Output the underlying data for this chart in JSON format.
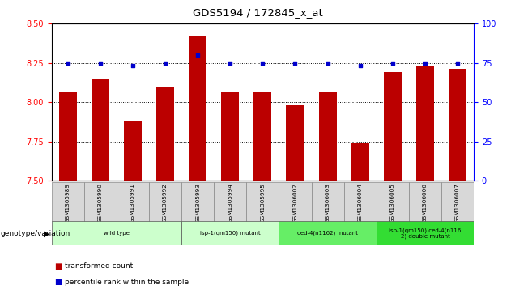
{
  "title": "GDS5194 / 172845_x_at",
  "samples": [
    "GSM1305989",
    "GSM1305990",
    "GSM1305991",
    "GSM1305992",
    "GSM1305993",
    "GSM1305994",
    "GSM1305995",
    "GSM1306002",
    "GSM1306003",
    "GSM1306004",
    "GSM1306005",
    "GSM1306006",
    "GSM1306007"
  ],
  "bar_values": [
    8.07,
    8.15,
    7.88,
    8.1,
    8.42,
    8.06,
    8.06,
    7.98,
    8.06,
    7.74,
    8.19,
    8.23,
    8.21
  ],
  "percentile_values": [
    75,
    75,
    73,
    75,
    80,
    75,
    75,
    75,
    75,
    73,
    75,
    75,
    75
  ],
  "bar_color": "#bb0000",
  "percentile_color": "#0000cc",
  "ylim_left": [
    7.5,
    8.5
  ],
  "ylim_right": [
    0,
    100
  ],
  "yticks_left": [
    7.5,
    7.75,
    8.0,
    8.25,
    8.5
  ],
  "yticks_right": [
    0,
    25,
    50,
    75,
    100
  ],
  "grid_values": [
    7.75,
    8.0,
    8.25
  ],
  "groups": [
    {
      "label": "wild type",
      "start": 0,
      "end": 3,
      "color": "#ccffcc"
    },
    {
      "label": "isp-1(qm150) mutant",
      "start": 4,
      "end": 6,
      "color": "#ccffcc"
    },
    {
      "label": "ced-4(n1162) mutant",
      "start": 7,
      "end": 9,
      "color": "#66ee66"
    },
    {
      "label": "isp-1(qm150) ced-4(n116\n2) double mutant",
      "start": 10,
      "end": 12,
      "color": "#33dd33"
    }
  ],
  "genotype_label": "genotype/variation",
  "legend_bar_label": "transformed count",
  "legend_pct_label": "percentile rank within the sample",
  "sample_bg_color": "#d8d8d8",
  "plot_bg": "#ffffff"
}
